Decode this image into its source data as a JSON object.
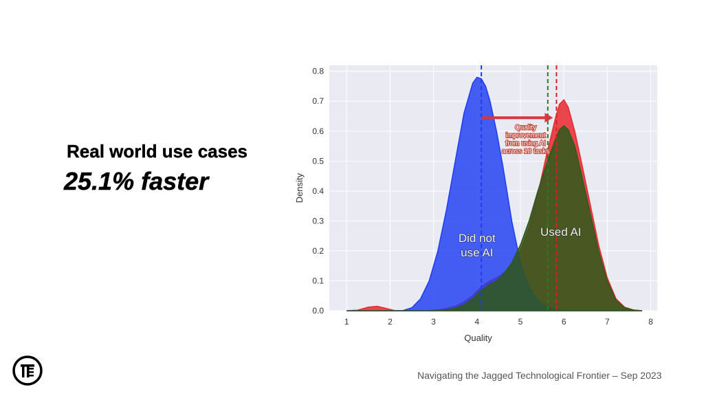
{
  "slide": {
    "headline": "Real world use cases",
    "stat": "25.1% faster",
    "footer": "Navigating the Jagged Technological Frontier – Sep 2023",
    "logo_icon": "brand-logo-icon"
  },
  "chart_data": {
    "type": "area",
    "xlabel": "Quality",
    "ylabel": "Density",
    "xlim": [
      0.6,
      8.15
    ],
    "ylim": [
      0,
      0.82
    ],
    "xticks": [
      "1",
      "2",
      "3",
      "4",
      "5",
      "6",
      "7",
      "8"
    ],
    "yticks": [
      "0.0",
      "0.1",
      "0.2",
      "0.3",
      "0.4",
      "0.5",
      "0.6",
      "0.7",
      "0.8"
    ],
    "grid": true,
    "background": "#eaeaf2",
    "x": [
      1.0,
      1.25,
      1.5,
      1.7,
      1.9,
      2.1,
      2.3,
      2.5,
      2.7,
      2.9,
      3.1,
      3.3,
      3.5,
      3.7,
      3.9,
      4.0,
      4.1,
      4.2,
      4.3,
      4.45,
      4.6,
      4.8,
      5.0,
      5.2,
      5.4,
      5.6,
      5.8,
      5.9,
      6.0,
      6.1,
      6.25,
      6.4,
      6.6,
      6.8,
      7.0,
      7.2,
      7.4,
      7.6,
      7.8
    ],
    "series": [
      {
        "color": "#e8292f",
        "values": [
          0.0,
          0.002,
          0.012,
          0.015,
          0.008,
          0.001,
          0.0,
          0.0,
          0.0,
          0.001,
          0.003,
          0.008,
          0.015,
          0.03,
          0.05,
          0.065,
          0.08,
          0.09,
          0.1,
          0.11,
          0.125,
          0.15,
          0.2,
          0.28,
          0.39,
          0.52,
          0.64,
          0.69,
          0.705,
          0.68,
          0.6,
          0.5,
          0.36,
          0.22,
          0.11,
          0.04,
          0.012,
          0.003,
          0.0
        ]
      },
      {
        "color": "#1f3df0",
        "values": [
          0,
          0,
          0,
          0,
          0,
          0,
          0.001,
          0.01,
          0.04,
          0.1,
          0.2,
          0.34,
          0.5,
          0.66,
          0.76,
          0.78,
          0.775,
          0.75,
          0.7,
          0.6,
          0.48,
          0.3,
          0.16,
          0.08,
          0.035,
          0.014,
          0.005,
          0.002,
          0.001,
          0,
          0,
          0,
          0,
          0,
          0,
          0,
          0,
          0,
          0
        ]
      },
      {
        "color": "#2d5a1b",
        "values": [
          0,
          0,
          0,
          0,
          0,
          0,
          0,
          0,
          0,
          0,
          0.001,
          0.003,
          0.008,
          0.02,
          0.04,
          0.055,
          0.068,
          0.078,
          0.088,
          0.1,
          0.12,
          0.16,
          0.22,
          0.3,
          0.4,
          0.49,
          0.57,
          0.605,
          0.618,
          0.605,
          0.55,
          0.46,
          0.33,
          0.2,
          0.1,
          0.035,
          0.01,
          0.002,
          0.0
        ]
      }
    ],
    "vlines": [
      {
        "x": 4.1,
        "color": "#1f3df0"
      },
      {
        "x": 5.63,
        "color": "#2d7a1b"
      },
      {
        "x": 5.83,
        "color": "#d81f26"
      }
    ],
    "arrow": {
      "from": [
        4.1,
        0.645
      ],
      "to": [
        5.75,
        0.645
      ],
      "color": "#d9363e"
    },
    "annotations": [
      {
        "text": [
          "Quality",
          "improvement",
          "from using AI",
          "across 18 tasks"
        ],
        "x": 5.12,
        "y": 0.605
      },
      {
        "text": [
          "Did not",
          "use AI"
        ],
        "x": 4.0,
        "y": 0.23,
        "style": "overlay"
      },
      {
        "text": [
          "Used AI"
        ],
        "x": 5.93,
        "y": 0.25,
        "style": "overlay"
      }
    ]
  }
}
